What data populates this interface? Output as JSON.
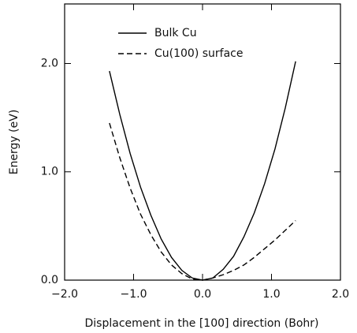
{
  "chart_data": {
    "type": "line",
    "x_label": "Displacement in the [100] direction (Bohr)",
    "y_label": "Energy (eV)",
    "x": [
      -1.35,
      -1.2,
      -1.05,
      -0.9,
      -0.75,
      -0.6,
      -0.45,
      -0.3,
      -0.15,
      0,
      0.15,
      0.3,
      0.45,
      0.6,
      0.75,
      0.9,
      1.05,
      1.2,
      1.35
    ],
    "series": [
      {
        "name": "Bulk Cu",
        "color": "#000000",
        "line_style": "solid",
        "values": [
          1.93,
          1.53,
          1.17,
          0.86,
          0.6,
          0.38,
          0.21,
          0.09,
          0.02,
          0,
          0.02,
          0.1,
          0.22,
          0.4,
          0.62,
          0.89,
          1.21,
          1.59,
          2.02
        ]
      },
      {
        "name": "Cu(100) surface",
        "color": "#000000",
        "line_style": "dashed",
        "values": [
          1.45,
          1.13,
          0.85,
          0.61,
          0.42,
          0.26,
          0.14,
          0.06,
          0.01,
          0,
          0.02,
          0.05,
          0.09,
          0.14,
          0.21,
          0.29,
          0.37,
          0.46,
          0.55
        ]
      }
    ],
    "xlim": [
      -2,
      2
    ],
    "xticks": [
      {
        "value": -2,
        "label": "−2.0"
      },
      {
        "value": -1,
        "label": "−1.0"
      },
      {
        "value": 0,
        "label": "0.0"
      },
      {
        "value": 1,
        "label": "1.0"
      },
      {
        "value": 2,
        "label": "2.0"
      }
    ],
    "ylim": [
      0,
      2.55
    ],
    "yticks": [
      {
        "value": 0,
        "label": "0.0"
      },
      {
        "value": 1,
        "label": "1.0"
      },
      {
        "value": 2,
        "label": "2.0"
      }
    ],
    "legend": "top"
  }
}
